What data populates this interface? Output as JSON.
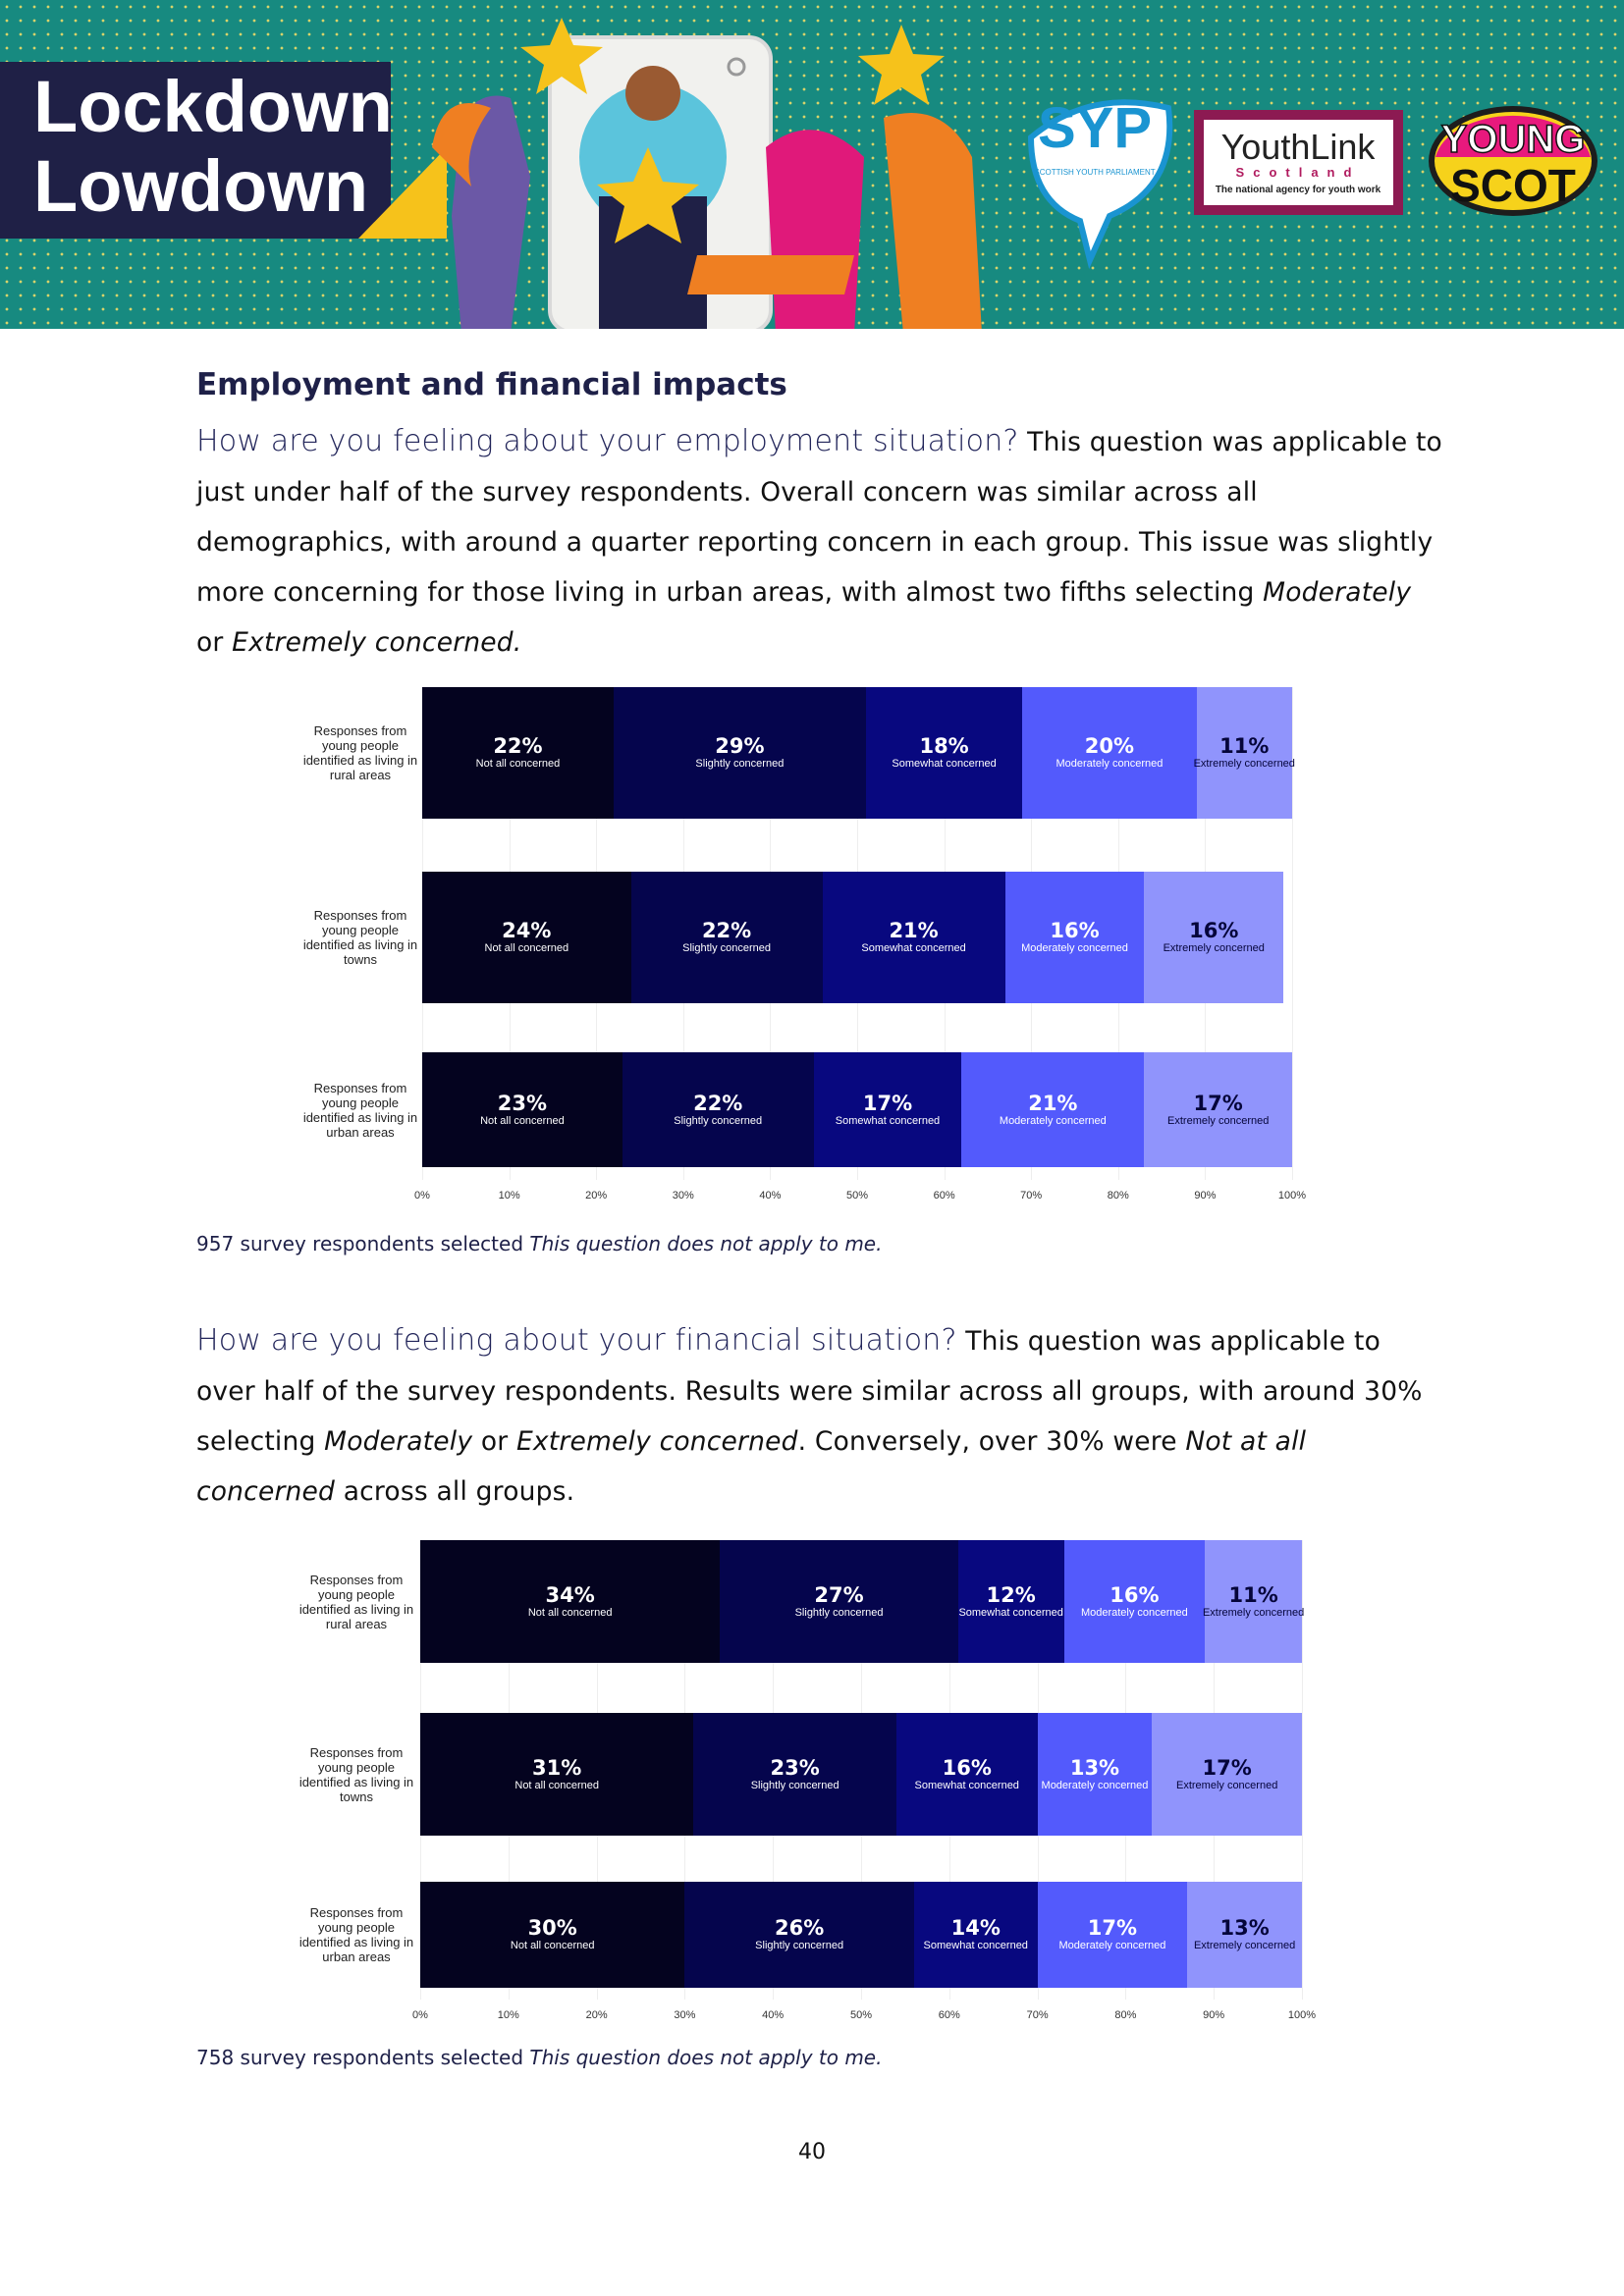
{
  "header": {
    "title_lines": [
      "Lockdown",
      "Lowdown"
    ],
    "logos": [
      "SYP",
      "SCOTTISH YOUTH PARLIAMENT",
      "YouthLink",
      "Scotland",
      "The national agency for youth work",
      "YOUNG",
      "SCOT"
    ]
  },
  "section_title": "Employment and financial impacts",
  "paragraphs": [
    [
      {
        "text": "How are you feeling about your employment situation?",
        "style": "lead"
      },
      {
        "text": " This question was applicable to just under half of the survey respondents. Overall concern was similar across all demographics, with around a quarter reporting concern in each group. This issue was slightly more concerning for those living in urban areas, with almost two fifths selecting ",
        "style": "normal"
      },
      {
        "text": "Moderately",
        "style": "italic"
      },
      {
        "text": " or ",
        "style": "normal"
      },
      {
        "text": "Extremely concerned.",
        "style": "italic"
      }
    ],
    [
      {
        "text": "How are you feeling about your financial situation?",
        "style": "lead"
      },
      {
        "text": " This question was applicable to over half of the survey respondents. Results were similar across all groups, with around 30% selecting ",
        "style": "normal"
      },
      {
        "text": "Moderately",
        "style": "italic"
      },
      {
        "text": " or ",
        "style": "normal"
      },
      {
        "text": "Extremely concerned",
        "style": "italic"
      },
      {
        "text": ". Conversely, over 30% were ",
        "style": "normal"
      },
      {
        "text": "Not at all concerned",
        "style": "italic"
      },
      {
        "text": " across all groups.",
        "style": "normal"
      }
    ]
  ],
  "footnotes": [
    [
      {
        "text": "957 survey respondents selected ",
        "style": "normal"
      },
      {
        "text": "This question does not apply to me.",
        "style": "italic"
      }
    ],
    [
      {
        "text": "758 survey respondents selected ",
        "style": "normal"
      },
      {
        "text": "This question does not apply to me.",
        "style": "italic"
      }
    ]
  ],
  "page_number": "40",
  "chart_data": [
    {
      "type": "bar",
      "orientation": "horizontal",
      "stacked": true,
      "grid": true,
      "categories": [
        "Responses from young people identified as living in rural areas",
        "Responses from young people identified as living in towns",
        "Responses from young people identified as living in urban areas"
      ],
      "series": [
        {
          "name": "Not all concerned",
          "color": "#04031f",
          "label_color": "#ffffff",
          "values": [
            22,
            24,
            23
          ],
          "value_labels": [
            "22%",
            "24%",
            "23%"
          ]
        },
        {
          "name": "Slightly concerned",
          "color": "#05054d",
          "label_color": "#ffffff",
          "values": [
            29,
            22,
            22
          ],
          "value_labels": [
            "29%",
            "22%",
            "22%"
          ]
        },
        {
          "name": "Somewhat concerned",
          "color": "#08087f",
          "label_color": "#ffffff",
          "values": [
            18,
            21,
            17
          ],
          "value_labels": [
            "18%",
            "21%",
            "17%"
          ]
        },
        {
          "name": "Moderately concerned",
          "color": "#535afc",
          "label_color": "#ffffff",
          "values": [
            20,
            16,
            21
          ],
          "value_labels": [
            "20%",
            "16%",
            "21%"
          ]
        },
        {
          "name": "Extremely concerned",
          "color": "#9094fc",
          "label_color": "#05053a",
          "values": [
            11,
            16,
            17
          ],
          "value_labels": [
            "11%",
            "16%",
            "17%"
          ]
        }
      ],
      "xlim": [
        0,
        100
      ],
      "xticks": [
        {
          "value": 0,
          "label": "0%"
        },
        {
          "value": 10,
          "label": "10%"
        },
        {
          "value": 20,
          "label": "20%"
        },
        {
          "value": 30,
          "label": "30%"
        },
        {
          "value": 40,
          "label": "40%"
        },
        {
          "value": 50,
          "label": "50%"
        },
        {
          "value": 60,
          "label": "60%"
        },
        {
          "value": 70,
          "label": "70%"
        },
        {
          "value": 80,
          "label": "80%"
        },
        {
          "value": 90,
          "label": "90%"
        },
        {
          "value": 100,
          "label": "100%"
        }
      ]
    },
    {
      "type": "bar",
      "orientation": "horizontal",
      "stacked": true,
      "grid": true,
      "categories": [
        "Responses from young people identified as living in rural areas",
        "Responses from young people identified as living in towns",
        "Responses from young people identified as living in urban areas"
      ],
      "series": [
        {
          "name": "Not all concerned",
          "color": "#04031f",
          "label_color": "#ffffff",
          "values": [
            34,
            31,
            30
          ],
          "value_labels": [
            "34%",
            "31%",
            "30%"
          ]
        },
        {
          "name": "Slightly concerned",
          "color": "#05054d",
          "label_color": "#ffffff",
          "values": [
            27,
            23,
            26
          ],
          "value_labels": [
            "27%",
            "23%",
            "26%"
          ]
        },
        {
          "name": "Somewhat concerned",
          "color": "#08087f",
          "label_color": "#ffffff",
          "values": [
            12,
            16,
            14
          ],
          "value_labels": [
            "12%",
            "16%",
            "14%"
          ]
        },
        {
          "name": "Moderately concerned",
          "color": "#535afc",
          "label_color": "#ffffff",
          "values": [
            16,
            13,
            17
          ],
          "value_labels": [
            "16%",
            "13%",
            "17%"
          ]
        },
        {
          "name": "Extremely concerned",
          "color": "#9094fc",
          "label_color": "#05053a",
          "values": [
            11,
            17,
            13
          ],
          "value_labels": [
            "11%",
            "17%",
            "13%"
          ]
        }
      ],
      "xlim": [
        0,
        100
      ],
      "xticks": [
        {
          "value": 0,
          "label": "0%"
        },
        {
          "value": 10,
          "label": "10%"
        },
        {
          "value": 20,
          "label": "20%"
        },
        {
          "value": 30,
          "label": "30%"
        },
        {
          "value": 40,
          "label": "40%"
        },
        {
          "value": 50,
          "label": "50%"
        },
        {
          "value": 60,
          "label": "60%"
        },
        {
          "value": 70,
          "label": "70%"
        },
        {
          "value": 80,
          "label": "80%"
        },
        {
          "value": 90,
          "label": "90%"
        },
        {
          "value": 100,
          "label": "100%"
        }
      ]
    }
  ]
}
